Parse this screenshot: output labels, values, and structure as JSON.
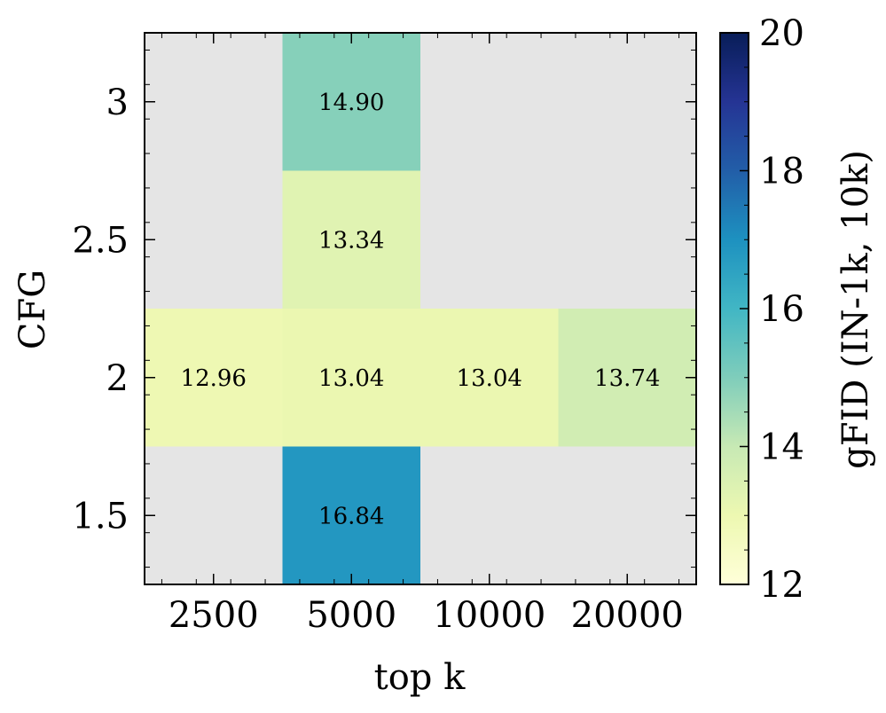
{
  "chart_data": {
    "type": "heatmap",
    "xlabel": "top k",
    "ylabel": "CFG",
    "x_categories": [
      "2500",
      "5000",
      "10000",
      "20000"
    ],
    "y_categories": [
      "3",
      "2.5",
      "2",
      "1.5"
    ],
    "cells": [
      {
        "x": "5000",
        "y": "3",
        "value": 14.9,
        "label": "14.90"
      },
      {
        "x": "5000",
        "y": "2.5",
        "value": 13.34,
        "label": "13.34"
      },
      {
        "x": "2500",
        "y": "2",
        "value": 12.96,
        "label": "12.96"
      },
      {
        "x": "5000",
        "y": "2",
        "value": 13.04,
        "label": "13.04"
      },
      {
        "x": "10000",
        "y": "2",
        "value": 13.04,
        "label": "13.04"
      },
      {
        "x": "20000",
        "y": "2",
        "value": 13.74,
        "label": "13.74"
      },
      {
        "x": "5000",
        "y": "1.5",
        "value": 16.84,
        "label": "16.84"
      }
    ],
    "missing_color": "#e5e5e5",
    "colorbar": {
      "label": "gFID (IN-1k, 10k)",
      "min": 12,
      "max": 20,
      "ticks": [
        "12",
        "14",
        "16",
        "18",
        "20"
      ],
      "colormap": "YlGnBu",
      "stops": [
        "#ffffd9",
        "#edf8b1",
        "#c7e9b4",
        "#7fcdbb",
        "#41b6c4",
        "#1d91c0",
        "#225ea8",
        "#253494",
        "#081d58"
      ]
    },
    "grid": false
  }
}
